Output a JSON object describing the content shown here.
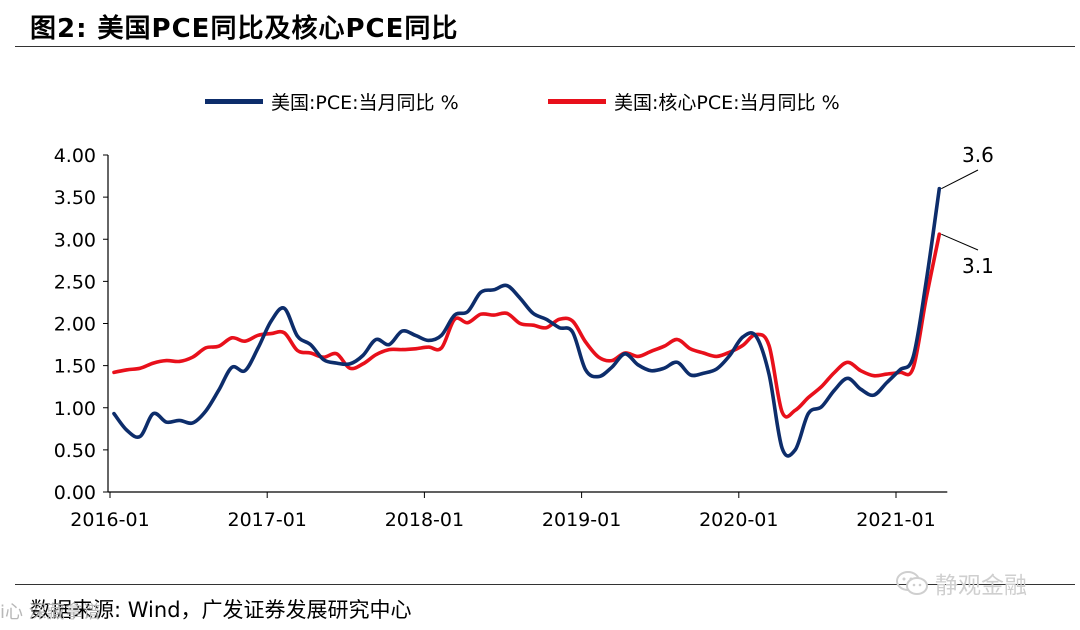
{
  "header": {
    "title": "图2:  美国PCE同比及核心PCE同比"
  },
  "footer": {
    "source": "数据来源:  Wind，广发证券发展研究中心"
  },
  "watermark": {
    "left_text": "i心 深藏拿谱",
    "right_text": "静观金融",
    "right_icon": "wechat-icon"
  },
  "colors": {
    "pce": "#0d2d6b",
    "core_pce": "#e8101b"
  },
  "chart_data": {
    "type": "line",
    "title": "图2:  美国PCE同比及核心PCE同比",
    "xlabel": "",
    "ylabel": "",
    "ylim": [
      0,
      4
    ],
    "yticks": [
      "4.00",
      "3.50",
      "3.00",
      "2.50",
      "2.00",
      "1.50",
      "1.00",
      "0.50",
      "0.00"
    ],
    "xticks": [
      "2016-01",
      "2017-01",
      "2018-01",
      "2019-01",
      "2020-01",
      "2021-01"
    ],
    "x_start": "2016-01",
    "legend_position": "top",
    "series": [
      {
        "name": "美国:PCE:当月同比 %",
        "color": "#0d2d6b",
        "end_label": "3.6",
        "values": [
          0.93,
          0.73,
          0.66,
          0.93,
          0.83,
          0.85,
          0.82,
          0.96,
          1.21,
          1.48,
          1.44,
          1.71,
          2.03,
          2.18,
          1.85,
          1.75,
          1.57,
          1.53,
          1.52,
          1.62,
          1.81,
          1.75,
          1.91,
          1.86,
          1.8,
          1.86,
          2.1,
          2.14,
          2.37,
          2.4,
          2.45,
          2.3,
          2.12,
          2.05,
          1.95,
          1.9,
          1.45,
          1.37,
          1.48,
          1.64,
          1.51,
          1.44,
          1.47,
          1.54,
          1.39,
          1.41,
          1.46,
          1.62,
          1.84,
          1.85,
          1.4,
          0.52,
          0.5,
          0.93,
          1.01,
          1.21,
          1.35,
          1.22,
          1.15,
          1.3,
          1.45,
          1.6,
          2.5,
          3.6
        ]
      },
      {
        "name": "美国:核心PCE:当月同比 %",
        "color": "#e8101b",
        "end_label": "3.1",
        "values": [
          1.42,
          1.45,
          1.47,
          1.53,
          1.56,
          1.55,
          1.6,
          1.71,
          1.73,
          1.83,
          1.79,
          1.86,
          1.88,
          1.89,
          1.68,
          1.65,
          1.6,
          1.64,
          1.47,
          1.52,
          1.63,
          1.69,
          1.69,
          1.7,
          1.72,
          1.71,
          2.05,
          2.01,
          2.11,
          2.1,
          2.12,
          2.0,
          1.98,
          1.95,
          2.05,
          2.03,
          1.78,
          1.6,
          1.56,
          1.65,
          1.61,
          1.67,
          1.73,
          1.81,
          1.7,
          1.65,
          1.61,
          1.66,
          1.74,
          1.87,
          1.74,
          0.95,
          0.97,
          1.12,
          1.25,
          1.42,
          1.54,
          1.44,
          1.38,
          1.4,
          1.42,
          1.47,
          2.3,
          3.06
        ]
      }
    ]
  }
}
